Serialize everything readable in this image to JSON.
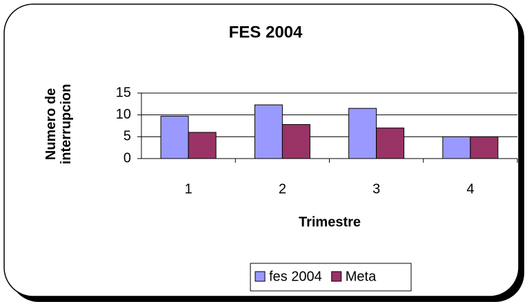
{
  "chart_data": {
    "type": "bar",
    "title": "FES 2004",
    "x_label": "Trimestre",
    "y_label": "Numero de interrupcion",
    "categories": [
      "1",
      "2",
      "3",
      "4"
    ],
    "series": [
      {
        "name": "fes 2004",
        "color": "#9999ff",
        "values": [
          9.7,
          12.3,
          11.5,
          5
        ]
      },
      {
        "name": "Meta",
        "color": "#993366",
        "values": [
          6,
          7.8,
          7,
          5
        ]
      }
    ],
    "ylim": [
      0,
      15
    ],
    "yticks": [
      0,
      5,
      10,
      15
    ],
    "grid": true
  }
}
